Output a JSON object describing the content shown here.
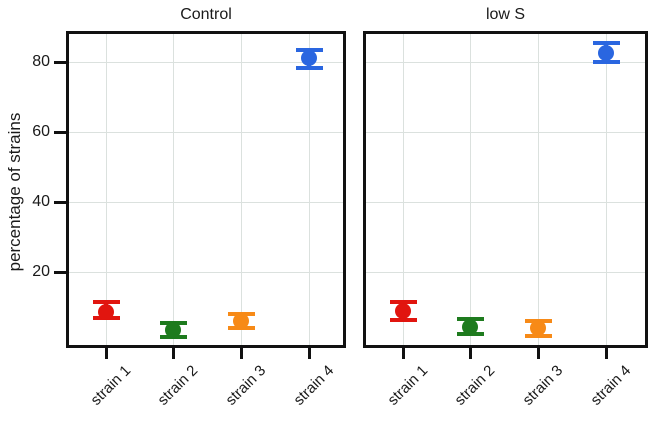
{
  "chart_data": {
    "type": "scatter",
    "subtype": "pointrange-with-errorbars",
    "title": "",
    "xlabel": "",
    "ylabel": "percentage of strains",
    "categories": [
      "strain 1",
      "strain 2",
      "strain 3",
      "strain 4"
    ],
    "category_colors": [
      "#e1150f",
      "#1e7b1e",
      "#f78a17",
      "#2a66e0"
    ],
    "yticks": [
      20,
      40,
      60,
      80
    ],
    "ylim": [
      -2,
      89
    ],
    "grid": "major-only",
    "grid_color": "#dbe1de",
    "axis_color": "#111111",
    "legend": "none",
    "facets": [
      {
        "title": "Control",
        "series": [
          {
            "category": "strain 1",
            "y": 8.7,
            "ymin": 6.9,
            "ymax": 11.4
          },
          {
            "category": "strain 2",
            "y": 3.5,
            "ymin": 1.4,
            "ymax": 5.5
          },
          {
            "category": "strain 3",
            "y": 6.0,
            "ymin": 3.9,
            "ymax": 8.0
          },
          {
            "category": "strain 4",
            "y": 81.1,
            "ymin": 78.2,
            "ymax": 83.4
          }
        ]
      },
      {
        "title": "low S",
        "series": [
          {
            "category": "strain 1",
            "y": 8.9,
            "ymin": 6.3,
            "ymax": 11.4
          },
          {
            "category": "strain 2",
            "y": 4.3,
            "ymin": 2.3,
            "ymax": 6.5
          },
          {
            "category": "strain 3",
            "y": 4.0,
            "ymin": 1.7,
            "ymax": 6.1
          },
          {
            "category": "strain 4",
            "y": 82.6,
            "ymin": 80.1,
            "ymax": 85.4
          }
        ]
      }
    ]
  }
}
